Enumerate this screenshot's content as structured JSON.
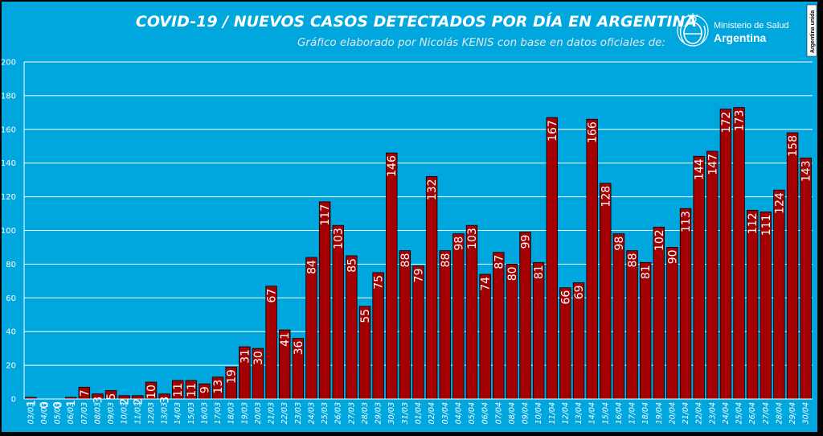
{
  "chart_data": {
    "type": "bar",
    "title": "COVID-19  /  NUEVOS CASOS DETECTADOS POR DÍA EN ARGENTINA",
    "subtitle": "Gráfico elaborado por Nicolás KENIS con base en datos oficiales de:",
    "categories": [
      "03/03",
      "04/03",
      "05/03",
      "06/03",
      "07/03",
      "08/03",
      "09/03",
      "10/03",
      "11/03",
      "12/03",
      "13/03",
      "14/03",
      "15/03",
      "16/03",
      "17/03",
      "18/03",
      "19/03",
      "20/03",
      "21/03",
      "22/03",
      "23/03",
      "24/03",
      "25/03",
      "26/03",
      "27/03",
      "28/03",
      "29/03",
      "30/03",
      "31/03",
      "01/04",
      "02/04",
      "03/04",
      "04/04",
      "05/04",
      "06/04",
      "07/04",
      "08/04",
      "09/04",
      "10/04",
      "11/04",
      "12/04",
      "13/04",
      "14/04",
      "15/04",
      "16/04",
      "17/04",
      "18/04",
      "19/04",
      "20/04",
      "21/04",
      "22/04",
      "23/04",
      "24/04",
      "25/04",
      "26/04",
      "27/04",
      "28/04",
      "29/04",
      "30/04"
    ],
    "values": [
      1,
      0,
      0,
      1,
      7,
      3,
      5,
      2,
      2,
      10,
      3,
      11,
      11,
      9,
      13,
      19,
      31,
      30,
      67,
      41,
      36,
      84,
      117,
      103,
      85,
      55,
      75,
      146,
      88,
      79,
      132,
      88,
      98,
      103,
      74,
      87,
      80,
      99,
      81,
      167,
      66,
      69,
      166,
      128,
      98,
      88,
      81,
      102,
      90,
      113,
      144,
      147,
      172,
      173,
      112,
      111,
      124,
      158,
      143
    ],
    "ylim": [
      0,
      200
    ],
    "yticks": [
      0,
      20,
      40,
      60,
      80,
      100,
      120,
      140,
      160,
      180,
      200
    ],
    "grid": true,
    "legend": "none",
    "colors": {
      "bar": "#a50000",
      "bar_edge": "#000000",
      "background": "#00a6de",
      "grid": "#ffffff",
      "text": "#ffffff"
    }
  },
  "logo": {
    "line1": "Ministerio de Salud",
    "line2": "Argentina",
    "stamp": "Argentina unida",
    "icon": "coat-of-arms-icon"
  }
}
